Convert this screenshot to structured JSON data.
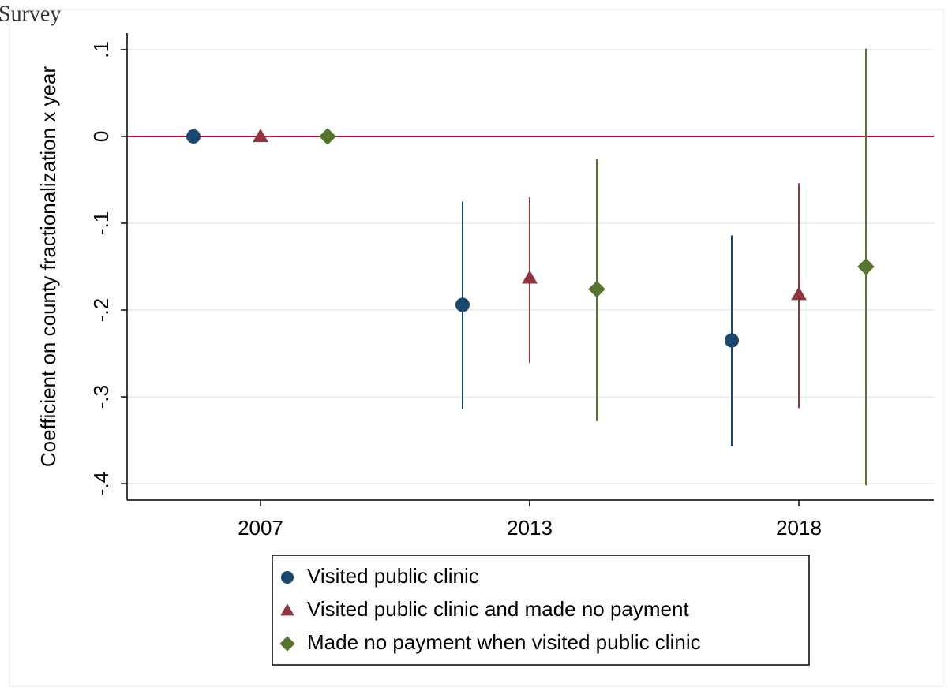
{
  "caption_top": "Survey",
  "chart_data": {
    "type": "coefplot",
    "ylabel": "Coefficient on county fractionalization x year",
    "categories": [
      "2007",
      "2013",
      "2018"
    ],
    "ylim": [
      -0.419,
      0.119
    ],
    "yticks": [
      {
        "value": 0.1,
        "label": ".1"
      },
      0,
      {
        "value": -0.1,
        "label": "-.1"
      },
      {
        "value": -0.2,
        "label": "-.2"
      },
      {
        "value": -0.3,
        "label": "-.3"
      },
      {
        "value": -0.4,
        "label": "-.4"
      }
    ],
    "grid": true,
    "reference_line": {
      "value": 0,
      "color": "#c8103e"
    },
    "series": [
      {
        "name": "Visited public clinic",
        "color": "#1a476f",
        "marker": "circle",
        "values": [
          0,
          -0.194,
          -0.235
        ],
        "lower": [
          null,
          -0.314,
          -0.357
        ],
        "upper": [
          null,
          -0.075,
          -0.114
        ]
      },
      {
        "name": "Visited public clinic and made no payment",
        "color": "#90353b",
        "marker": "triangle",
        "values": [
          0,
          -0.163,
          -0.182
        ],
        "lower": [
          null,
          -0.261,
          -0.313
        ],
        "upper": [
          null,
          -0.07,
          -0.054
        ]
      },
      {
        "name": "Made no payment when visited public clinic",
        "color": "#55752f",
        "marker": "diamond",
        "values": [
          0,
          -0.176,
          -0.15
        ],
        "lower": [
          null,
          -0.328,
          -0.402
        ],
        "upper": [
          null,
          -0.026,
          0.101
        ]
      }
    ]
  }
}
